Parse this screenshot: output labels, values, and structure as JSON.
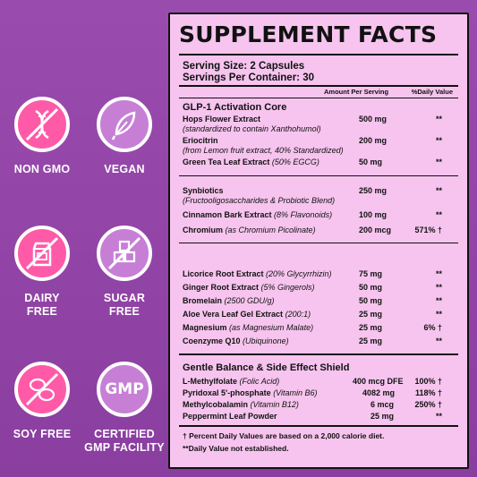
{
  "colors": {
    "background": "#9a4cae",
    "panel": "#f6c4ee",
    "badge_pink": "#ff5aa8",
    "badge_purple": "#c77fd6"
  },
  "badges": [
    {
      "icon": "dna-icon",
      "label": "NON GMO",
      "color": "pink"
    },
    {
      "icon": "leaf-icon",
      "label": "VEGAN",
      "color": "purple"
    },
    {
      "icon": "milk-carton-icon",
      "label": "DAIRY\nFREE",
      "color": "pink"
    },
    {
      "icon": "sugar-cubes-icon",
      "label": "SUGAR\nFREE",
      "color": "purple"
    },
    {
      "icon": "soybean-icon",
      "label": "SOY FREE",
      "color": "pink"
    },
    {
      "icon": "gmp-icon",
      "label": "CERTIFIED\nGMP FACILITY",
      "color": "purple",
      "icon_text": "GMP"
    }
  ],
  "facts": {
    "title": "SUPPLEMENT FACTS",
    "serving_size": "Serving Size: 2 Capsules",
    "servings_per_container": "Servings Per Container: 30",
    "col_amount": "Amount Per Serving",
    "col_dv": "%Daily Value",
    "section1": "GLP-1 Activation Core",
    "rows1": [
      {
        "name": "Hops Flower Extract",
        "desc": "(standardized to contain Xanthohumol)",
        "amount": "500 mg",
        "dv": "**"
      },
      {
        "name": "Eriocitrin",
        "desc": "(from Lemon fruit extract, 40% Standardized)",
        "amount": "200 mg",
        "dv": "**"
      },
      {
        "name": "Green Tea Leaf Extract",
        "desc": "(50% EGCG)",
        "amount": "50 mg",
        "dv": "**"
      }
    ],
    "rows2": [
      {
        "name": "Synbiotics",
        "desc": "(Fructooligosaccharides & Probiotic Blend)",
        "amount": "250 mg",
        "dv": "**"
      },
      {
        "name": "Cinnamon Bark Extract",
        "desc": "(8% Flavonoids)",
        "amount": "100 mg",
        "dv": "**"
      },
      {
        "name": "Chromium",
        "desc": "(as Chromium Picolinate)",
        "amount": "200 mcg",
        "dv": "571% †"
      }
    ],
    "rows3": [
      {
        "name": "Licorice Root Extract",
        "desc": "(20% Glycyrrhizin)",
        "amount": "75 mg",
        "dv": "**"
      },
      {
        "name": "Ginger Root Extract",
        "desc": "(5% Gingerols)",
        "amount": "50 mg",
        "dv": "**"
      },
      {
        "name": "Bromelain",
        "desc": "(2500 GDU/g)",
        "amount": "50 mg",
        "dv": "**"
      },
      {
        "name": "Aloe Vera Leaf Gel Extract",
        "desc": "(200:1)",
        "amount": "25 mg",
        "dv": "**"
      },
      {
        "name": "Magnesium",
        "desc": "(as Magnesium Malate)",
        "amount": "25 mg",
        "dv": "6% †"
      },
      {
        "name": "Coenzyme Q10",
        "desc": "(Ubiquinone)",
        "amount": "25 mg",
        "dv": "**"
      }
    ],
    "section4": "Gentle Balance & Side Effect Shield",
    "rows4": [
      {
        "name": "L-Methylfolate",
        "desc": "(Folic Acid)",
        "amount": "400 mcg DFE",
        "dv": "100% †"
      },
      {
        "name": "Pyridoxal 5'-phosphate",
        "desc": "(Vitamin B6)",
        "amount": "4082 mg",
        "dv": "118% †"
      },
      {
        "name": "Methylcobalamin",
        "desc": "(Vitamin B12)",
        "amount": "6 mcg",
        "dv": "250% †"
      },
      {
        "name": "Peppermint Leaf Powder",
        "desc": "",
        "amount": "25 mg",
        "dv": "**"
      }
    ],
    "footnote1": "† Percent Daily Values are based on a 2,000 calorie diet.",
    "footnote2": "**Daily Value not established."
  }
}
